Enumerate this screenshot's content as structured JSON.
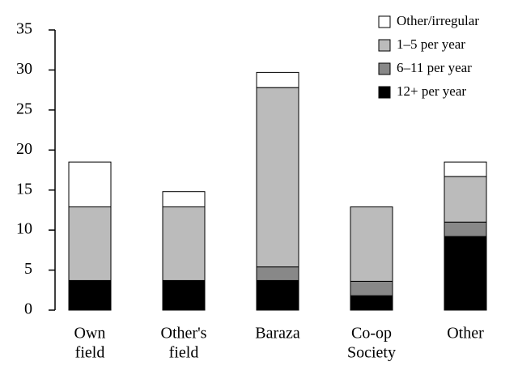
{
  "chart_data": {
    "type": "stacked_bar",
    "categories": [
      [
        "Own",
        "field"
      ],
      [
        "Other's",
        "field"
      ],
      [
        "Baraza"
      ],
      [
        "Co-op",
        "Society"
      ],
      [
        "Other"
      ]
    ],
    "series": [
      {
        "name": "12+ per year",
        "color": "#000000",
        "values": [
          3.7,
          3.7,
          3.7,
          1.8,
          9.2
        ]
      },
      {
        "name": "6–11 per year",
        "color": "#888888",
        "values": [
          0,
          0,
          1.7,
          1.8,
          1.8
        ]
      },
      {
        "name": "1–5 per year",
        "color": "#bbbbbb",
        "values": [
          9.2,
          9.2,
          22.4,
          9.3,
          5.7
        ]
      },
      {
        "name": "Other/irregular",
        "color": "#ffffff",
        "values": [
          5.6,
          1.9,
          1.9,
          0,
          1.8
        ]
      }
    ],
    "ylim": [
      0,
      35
    ],
    "yticks": [
      0,
      5,
      10,
      15,
      20,
      25,
      30,
      35
    ],
    "legend": "upper right"
  }
}
